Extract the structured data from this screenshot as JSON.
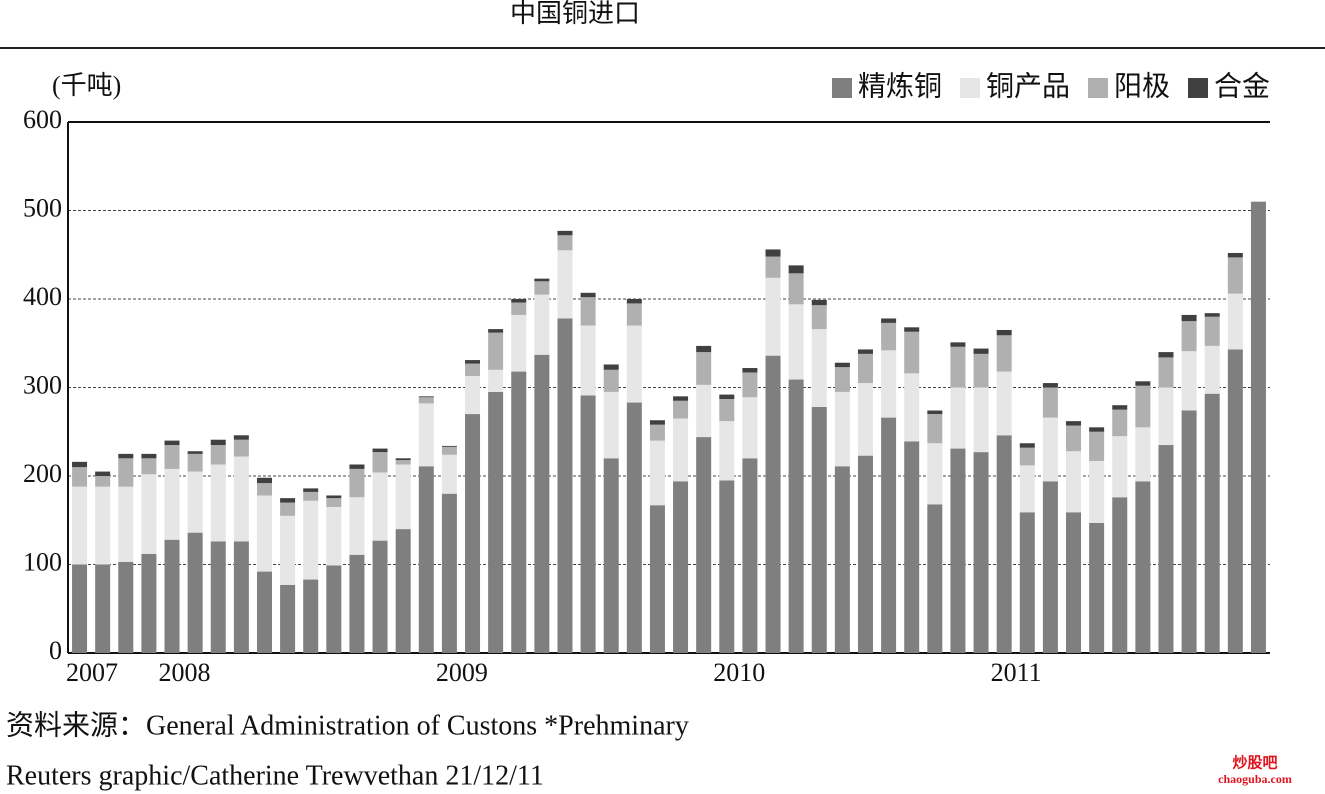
{
  "chart_data": {
    "type": "stacked_bar",
    "title": "中国铜进口",
    "y_unit": "(千吨)",
    "categories": [
      "2007",
      null,
      null,
      null,
      "2008",
      null,
      null,
      null,
      null,
      null,
      null,
      null,
      null,
      null,
      null,
      null,
      "2009",
      null,
      null,
      null,
      null,
      null,
      null,
      null,
      null,
      null,
      null,
      null,
      "2010",
      null,
      null,
      null,
      null,
      null,
      null,
      null,
      null,
      null,
      null,
      null,
      "2011",
      null,
      null,
      null,
      null,
      null,
      null,
      null,
      null,
      null,
      null,
      null
    ],
    "series": [
      {
        "name": "精炼铜",
        "color": "#7f7f7f",
        "values": [
          100,
          100,
          103,
          112,
          128,
          136,
          126,
          126,
          92,
          77,
          83,
          99,
          111,
          127,
          140,
          211,
          180,
          270,
          295,
          318,
          337,
          378,
          291,
          220,
          283,
          167,
          194,
          244,
          195,
          220,
          336,
          309,
          278,
          211,
          223,
          266,
          239,
          168,
          231,
          227,
          246,
          159,
          194,
          159,
          147,
          176,
          194,
          235,
          274,
          293,
          343,
          510
        ]
      },
      {
        "name": "铜产品",
        "color": "#e6e6e6",
        "values": [
          88,
          88,
          85,
          90,
          80,
          69,
          87,
          96,
          86,
          78,
          89,
          66,
          65,
          77,
          73,
          71,
          44,
          43,
          25,
          64,
          68,
          77,
          79,
          75,
          87,
          73,
          71,
          59,
          67,
          69,
          88,
          85,
          88,
          84,
          82,
          76,
          77,
          69,
          69,
          73,
          72,
          53,
          72,
          69,
          70,
          69,
          61,
          65,
          67,
          54,
          63,
          0
        ]
      },
      {
        "name": "阳极",
        "color": "#b0b0b0",
        "values": [
          22,
          12,
          32,
          18,
          27,
          20,
          22,
          19,
          14,
          15,
          10,
          10,
          32,
          23,
          5,
          7,
          9,
          14,
          42,
          14,
          15,
          17,
          32,
          25,
          25,
          18,
          20,
          37,
          25,
          28,
          24,
          35,
          27,
          28,
          33,
          31,
          47,
          33,
          46,
          38,
          41,
          20,
          34,
          29,
          33,
          30,
          47,
          34,
          34,
          33,
          41,
          0
        ]
      },
      {
        "name": "合金",
        "color": "#404040",
        "values": [
          6,
          5,
          5,
          5,
          5,
          3,
          6,
          5,
          6,
          5,
          4,
          3,
          5,
          4,
          2,
          1,
          1,
          4,
          4,
          4,
          3,
          5,
          5,
          6,
          5,
          5,
          5,
          7,
          5,
          5,
          8,
          9,
          6,
          5,
          5,
          5,
          5,
          4,
          5,
          6,
          6,
          5,
          5,
          5,
          5,
          5,
          5,
          6,
          7,
          4,
          5,
          0
        ]
      }
    ],
    "ylim": [
      0,
      600
    ],
    "yticks": [
      0,
      100,
      200,
      300,
      400,
      500,
      600
    ],
    "grid": true,
    "legend": "top-right",
    "source": "资料来源：General Administration of Custons *Prehminary",
    "credit": "Reuters graphic/Catherine Trewvethan   21/12/11",
    "watermark": {
      "title": "炒股吧",
      "url": "chaoguba.com"
    }
  }
}
